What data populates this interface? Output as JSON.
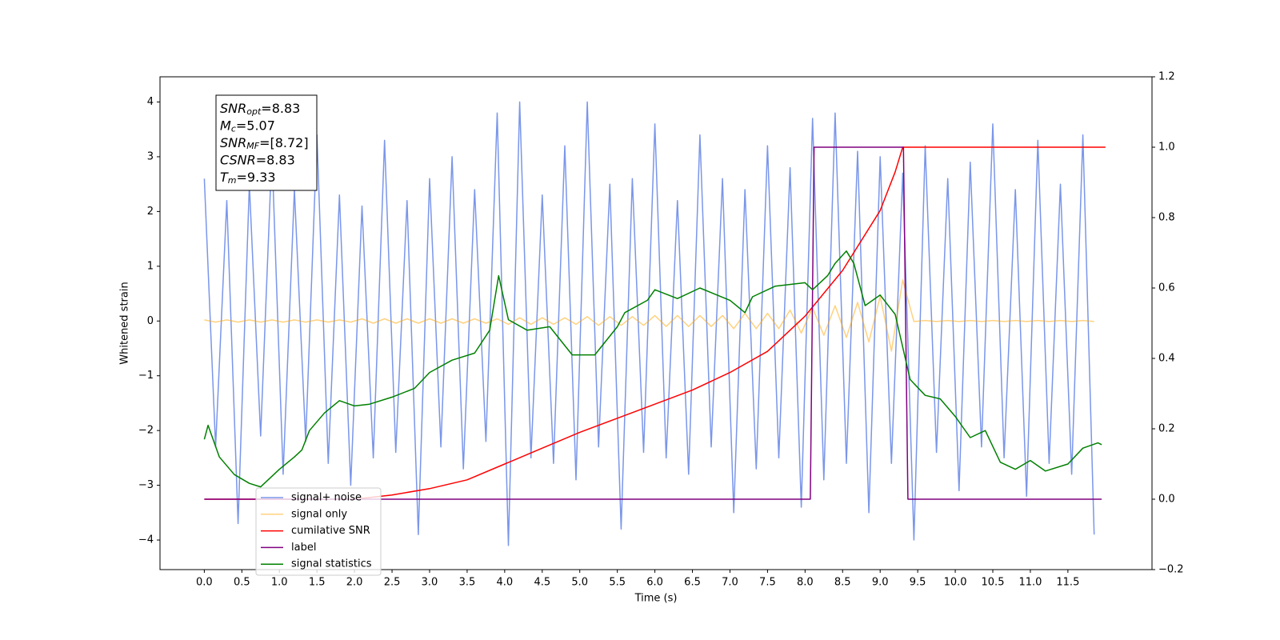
{
  "chart_data": {
    "type": "line",
    "xlabel": "Time (s)",
    "ylabel": "Whitened strain",
    "xlim": [
      -0.59,
      12.62
    ],
    "ylim": [
      -4.54,
      4.46
    ],
    "y2lim": [
      -0.2,
      1.2
    ],
    "xticks": [
      {
        "value": 0,
        "label": "0.0"
      },
      {
        "value": 0.5,
        "label": "0.5"
      },
      {
        "value": 1,
        "label": "1.0"
      },
      {
        "value": 1.5,
        "label": "1.5"
      },
      {
        "value": 2,
        "label": "2.0"
      },
      {
        "value": 2.5,
        "label": "2.5"
      },
      {
        "value": 3,
        "label": "3.0"
      },
      {
        "value": 3.5,
        "label": "3.5"
      },
      {
        "value": 4,
        "label": "4.0"
      },
      {
        "value": 4.5,
        "label": "4.5"
      },
      {
        "value": 5,
        "label": "5.0"
      },
      {
        "value": 5.5,
        "label": "5.5"
      },
      {
        "value": 6,
        "label": "6.0"
      },
      {
        "value": 6.5,
        "label": "6.5"
      },
      {
        "value": 7,
        "label": "7.0"
      },
      {
        "value": 7.5,
        "label": "7.5"
      },
      {
        "value": 8,
        "label": "8.0"
      },
      {
        "value": 8.5,
        "label": "8.5"
      },
      {
        "value": 9,
        "label": "9.0"
      },
      {
        "value": 9.5,
        "label": "9.5"
      },
      {
        "value": 10,
        "label": "10.0"
      },
      {
        "value": 10.5,
        "label": "10.5"
      },
      {
        "value": 11,
        "label": "11.0"
      },
      {
        "value": 11.5,
        "label": "11.5"
      }
    ],
    "yticks": [
      {
        "value": -4,
        "label": "−4"
      },
      {
        "value": -3,
        "label": "−3"
      },
      {
        "value": -2,
        "label": "−2"
      },
      {
        "value": -1,
        "label": "−1"
      },
      0,
      1,
      2,
      3,
      4
    ],
    "y2ticks": [
      {
        "value": -0.2,
        "label": "−0.2"
      },
      {
        "value": 0,
        "label": "0.0"
      },
      {
        "value": 0.2,
        "label": "0.2"
      },
      {
        "value": 0.4,
        "label": "0.4"
      },
      {
        "value": 0.6,
        "label": "0.6"
      },
      {
        "value": 0.8,
        "label": "0.8"
      },
      {
        "value": 1,
        "label": "1.0"
      },
      {
        "value": 1.2,
        "label": "1.2"
      }
    ],
    "grid": false,
    "legend": "lower left",
    "annotation": [
      [
        "SNR",
        "opt",
        "=8.83"
      ],
      [
        "M",
        "c",
        "=5.07"
      ],
      [
        "SNR",
        "MF",
        "=[8.72]"
      ],
      [
        "CSNR",
        "",
        "=8.83"
      ],
      [
        "T",
        "m",
        "=9.33"
      ]
    ],
    "x": [
      0,
      0.15,
      0.3,
      0.45,
      0.6,
      0.75,
      0.9,
      1.05,
      1.2,
      1.35,
      1.5,
      1.65,
      1.8,
      1.95,
      2.1,
      2.25,
      2.4,
      2.55,
      2.7,
      2.85,
      3,
      3.15,
      3.3,
      3.45,
      3.6,
      3.75,
      3.9,
      4.05,
      4.2,
      4.35,
      4.5,
      4.65,
      4.8,
      4.95,
      5.1,
      5.25,
      5.4,
      5.55,
      5.7,
      5.85,
      6,
      6.15,
      6.3,
      6.45,
      6.6,
      6.75,
      6.9,
      7.05,
      7.2,
      7.35,
      7.5,
      7.65,
      7.8,
      7.95,
      8.1,
      8.25,
      8.4,
      8.55,
      8.7,
      8.85,
      9,
      9.15,
      9.3,
      9.45,
      9.6,
      9.75,
      9.9,
      10.05,
      10.2,
      10.35,
      10.5,
      10.65,
      10.8,
      10.95,
      11.1,
      11.25,
      11.4,
      11.55,
      11.7,
      11.85
    ],
    "series": [
      {
        "name": "signal+ noise",
        "color": "#4169e1",
        "alpha": 0.7,
        "axis": "y",
        "values": [
          2.6,
          -2.3,
          2.2,
          -3.7,
          2.5,
          -2.1,
          3.1,
          -2.8,
          2.4,
          -2.2,
          3.4,
          -2.6,
          2.3,
          -3.0,
          2.1,
          -2.5,
          3.3,
          -2.4,
          2.2,
          -3.9,
          2.6,
          -2.3,
          3.0,
          -2.7,
          2.4,
          -2.2,
          3.8,
          -4.1,
          4.0,
          -2.5,
          2.3,
          -2.6,
          3.2,
          -2.9,
          4.0,
          -2.3,
          2.5,
          -3.8,
          2.6,
          -2.4,
          3.6,
          -2.5,
          2.2,
          -2.8,
          3.4,
          -2.3,
          2.6,
          -3.5,
          2.4,
          -2.7,
          3.2,
          -2.5,
          2.8,
          -3.4,
          3.7,
          -2.9,
          3.8,
          -2.6,
          3.1,
          -3.5,
          3.0,
          -2.6,
          2.7,
          -4.0,
          3.2,
          -2.4,
          2.6,
          -3.1,
          2.9,
          -2.3,
          3.6,
          -2.5,
          2.4,
          -3.2,
          3.3,
          -2.6,
          2.5,
          -2.8,
          3.4,
          -3.9
        ]
      },
      {
        "name": "signal only",
        "color": "#ffa500",
        "alpha": 0.5,
        "axis": "y",
        "values": [
          0.02,
          -0.02,
          0.02,
          -0.02,
          0.02,
          -0.02,
          0.02,
          -0.02,
          0.02,
          -0.02,
          0.02,
          -0.02,
          0.02,
          -0.02,
          0.04,
          -0.04,
          0.04,
          -0.04,
          0.04,
          -0.04,
          0.04,
          -0.04,
          0.04,
          -0.04,
          0.04,
          -0.04,
          0.04,
          -0.06,
          0.06,
          -0.06,
          0.06,
          -0.06,
          0.06,
          -0.06,
          0.08,
          -0.08,
          0.08,
          -0.08,
          0.08,
          -0.08,
          0.1,
          -0.1,
          0.1,
          -0.1,
          0.1,
          -0.1,
          0.1,
          -0.14,
          0.14,
          -0.14,
          0.14,
          -0.14,
          0.2,
          -0.22,
          0.24,
          -0.26,
          0.28,
          -0.3,
          0.34,
          -0.38,
          0.45,
          -0.55,
          0.75,
          -0.01,
          0.01,
          -0.01,
          0.01,
          -0.01,
          0.01,
          -0.01,
          0.01,
          -0.01,
          0.01,
          -0.01,
          0.01,
          -0.01,
          0.01,
          -0.01,
          0.01,
          -0.01
        ]
      },
      {
        "name": "cumilative SNR",
        "color": "#ff0000",
        "alpha": 1,
        "axis": "y2",
        "x": [
          0,
          1,
          2,
          2.5,
          3,
          3.5,
          4,
          4.5,
          5,
          5.5,
          6,
          6.5,
          7,
          7.5,
          8,
          8.5,
          9,
          9.2,
          9.3,
          10,
          11,
          12
        ],
        "values": [
          0,
          0,
          0,
          0.012,
          0.03,
          0.055,
          0.1,
          0.145,
          0.19,
          0.23,
          0.27,
          0.31,
          0.36,
          0.42,
          0.52,
          0.65,
          0.82,
          0.93,
          1,
          1,
          1,
          1
        ]
      },
      {
        "name": "label",
        "color": "#800080",
        "alpha": 1,
        "axis": "y2",
        "x": [
          0,
          8.07,
          8.12,
          9.31,
          9.37,
          11.95
        ],
        "values": [
          0,
          0,
          1,
          1,
          0,
          0
        ]
      },
      {
        "name": "signal statistics",
        "color": "#008000",
        "alpha": 1,
        "axis": "y2",
        "x": [
          0,
          0.05,
          0.2,
          0.4,
          0.6,
          0.75,
          1.0,
          1.2,
          1.3,
          1.4,
          1.6,
          1.8,
          2.0,
          2.2,
          2.5,
          2.8,
          3.0,
          3.3,
          3.6,
          3.8,
          3.92,
          4.05,
          4.3,
          4.6,
          4.9,
          5.2,
          5.5,
          5.6,
          5.9,
          6.0,
          6.3,
          6.6,
          7.0,
          7.2,
          7.3,
          7.6,
          8.0,
          8.1,
          8.3,
          8.4,
          8.55,
          8.65,
          8.8,
          9.0,
          9.2,
          9.4,
          9.6,
          9.8,
          10.0,
          10.2,
          10.4,
          10.6,
          10.8,
          11.0,
          11.2,
          11.5,
          11.7,
          11.9,
          11.95
        ],
        "values": [
          0.17,
          0.21,
          0.12,
          0.07,
          0.045,
          0.035,
          0.085,
          0.12,
          0.14,
          0.195,
          0.245,
          0.28,
          0.265,
          0.27,
          0.29,
          0.315,
          0.36,
          0.395,
          0.415,
          0.48,
          0.635,
          0.51,
          0.48,
          0.49,
          0.41,
          0.41,
          0.49,
          0.53,
          0.565,
          0.595,
          0.57,
          0.6,
          0.565,
          0.53,
          0.575,
          0.605,
          0.615,
          0.595,
          0.635,
          0.67,
          0.705,
          0.67,
          0.55,
          0.58,
          0.525,
          0.34,
          0.295,
          0.285,
          0.235,
          0.175,
          0.195,
          0.105,
          0.085,
          0.11,
          0.08,
          0.1,
          0.145,
          0.16,
          0.155
        ]
      }
    ]
  }
}
